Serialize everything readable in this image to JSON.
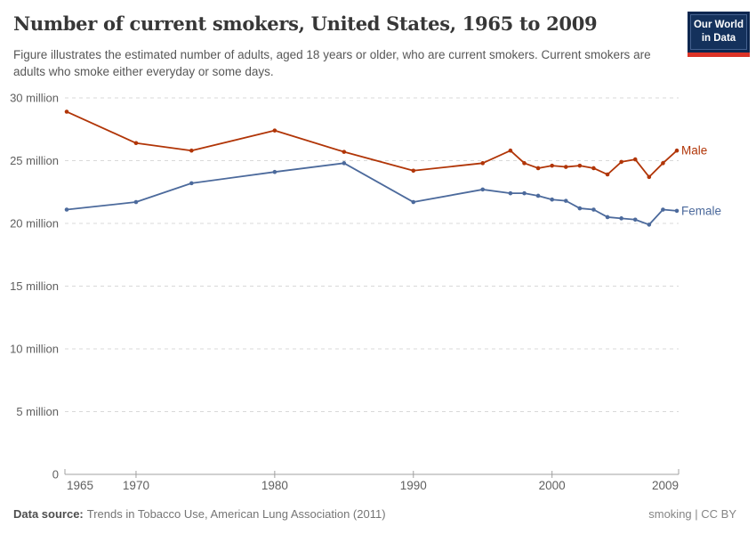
{
  "header": {
    "title": "Number of current smokers, United States, 1965 to 2009",
    "subtitle": "Figure illustrates the estimated number of adults, aged 18 years or older, who are current smokers. Current smokers are adults who smoke either everyday or some days.",
    "logo": {
      "line1": "Our World",
      "line2": "in Data"
    }
  },
  "chart_data": {
    "type": "line",
    "title": "Number of current smokers, United States, 1965 to 2009",
    "x": [
      1965,
      1970,
      1974,
      1980,
      1985,
      1990,
      1995,
      1997,
      1998,
      1999,
      2000,
      2001,
      2002,
      2003,
      2004,
      2005,
      2006,
      2007,
      2008,
      2009
    ],
    "series": [
      {
        "name": "Male",
        "color": "#b13507",
        "values": [
          28.9,
          26.4,
          25.8,
          27.4,
          25.7,
          24.2,
          24.8,
          25.8,
          24.8,
          24.4,
          24.6,
          24.5,
          24.6,
          24.4,
          23.9,
          24.9,
          25.1,
          23.7,
          24.8,
          25.8
        ]
      },
      {
        "name": "Female",
        "color": "#4c6a9c",
        "values": [
          21.1,
          21.7,
          23.2,
          24.1,
          24.8,
          21.7,
          22.7,
          22.4,
          22.4,
          22.2,
          21.9,
          21.8,
          21.2,
          21.1,
          20.5,
          20.4,
          20.3,
          19.9,
          21.1,
          21.0
        ]
      }
    ],
    "yticks": [
      {
        "value": 0,
        "label": "0"
      },
      {
        "value": 5,
        "label": "5 million"
      },
      {
        "value": 10,
        "label": "10 million"
      },
      {
        "value": 15,
        "label": "15 million"
      },
      {
        "value": 20,
        "label": "20 million"
      },
      {
        "value": 25,
        "label": "25 million"
      },
      {
        "value": 30,
        "label": "30 million"
      }
    ],
    "xticks": [
      1965,
      1970,
      1980,
      1990,
      2000,
      2009
    ],
    "ylim": [
      0,
      30
    ],
    "xlim": [
      1965,
      2009
    ],
    "grid": "horizontal-dashed",
    "legend_position": "right-of-line-end",
    "colors": {
      "gridline": "#d9d9d9",
      "axis": "#a0a0a0",
      "tick_label": "#606060"
    }
  },
  "footer": {
    "datasource_label": "Data source:",
    "datasource_text": "Trends in Tobacco Use, American Lung Association (2011)",
    "license": "smoking | CC BY"
  }
}
